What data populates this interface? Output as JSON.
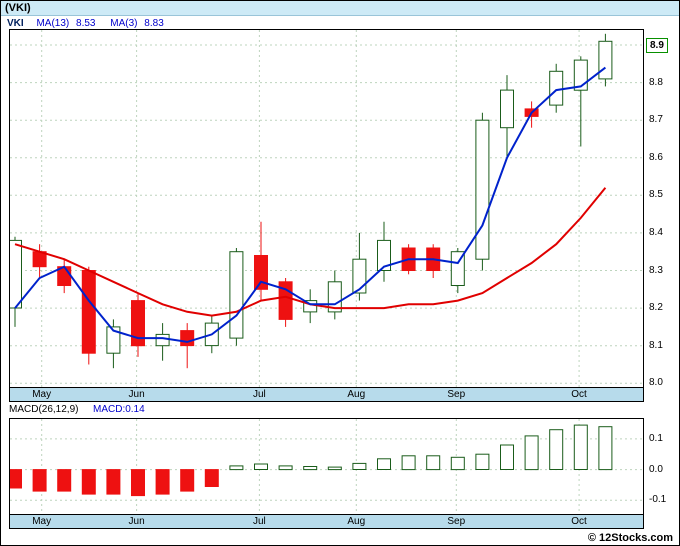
{
  "title": "(VKI)",
  "legend": {
    "symbol": "VKI",
    "ma13_label": "MA(13)",
    "ma13_value": "8.53",
    "ma3_label": "MA(3)",
    "ma3_value": "8.83"
  },
  "macd_panel": {
    "label": "MACD(26,12,9)",
    "current": "MACD:0.14"
  },
  "footer": {
    "credit": "© 12Stocks.com"
  },
  "colors": {
    "down": "#ee1111",
    "up_fill": "#ffffff",
    "up_stroke": "#1a5c1a",
    "grid": "#bdd4bd",
    "ma3": "#0022cc",
    "ma13": "#e00000",
    "tag_border": "#089000",
    "legend_blue": "#0000cc"
  },
  "chart_data": [
    {
      "type": "candlestick",
      "symbol": "VKI",
      "title": "(VKI)",
      "ylabel": "Price",
      "ylim": [
        7.99,
        8.94
      ],
      "yticks": [
        8.0,
        8.1,
        8.2,
        8.3,
        8.4,
        8.5,
        8.6,
        8.7,
        8.8,
        8.9
      ],
      "grid": true,
      "last_price": 8.9,
      "last_price_label": "8.9",
      "months": [
        {
          "label": "May",
          "f": 0.05
        },
        {
          "label": "Jun",
          "f": 0.2
        },
        {
          "label": "Jul",
          "f": 0.394
        },
        {
          "label": "Aug",
          "f": 0.547
        },
        {
          "label": "Sep",
          "f": 0.705
        },
        {
          "label": "Oct",
          "f": 0.899
        }
      ],
      "candles_format": [
        "open",
        "high",
        "low",
        "close"
      ],
      "candles": [
        [
          8.2,
          8.39,
          8.15,
          8.38
        ],
        [
          8.35,
          8.37,
          8.28,
          8.31
        ],
        [
          8.31,
          8.33,
          8.24,
          8.26
        ],
        [
          8.3,
          8.31,
          8.05,
          8.08
        ],
        [
          8.08,
          8.17,
          8.04,
          8.15
        ],
        [
          8.22,
          8.24,
          8.07,
          8.1
        ],
        [
          8.1,
          8.16,
          8.06,
          8.13
        ],
        [
          8.14,
          8.16,
          8.04,
          8.1
        ],
        [
          8.1,
          8.18,
          8.08,
          8.16
        ],
        [
          8.12,
          8.36,
          8.1,
          8.35
        ],
        [
          8.34,
          8.43,
          8.22,
          8.25
        ],
        [
          8.27,
          8.28,
          8.15,
          8.17
        ],
        [
          8.19,
          8.25,
          8.16,
          8.22
        ],
        [
          8.19,
          8.3,
          8.17,
          8.27
        ],
        [
          8.24,
          8.4,
          8.22,
          8.33
        ],
        [
          8.3,
          8.43,
          8.27,
          8.38
        ],
        [
          8.36,
          8.37,
          8.29,
          8.3
        ],
        [
          8.36,
          8.37,
          8.28,
          8.3
        ],
        [
          8.26,
          8.36,
          8.24,
          8.35
        ],
        [
          8.33,
          8.72,
          8.3,
          8.7
        ],
        [
          8.68,
          8.82,
          8.6,
          8.78
        ],
        [
          8.73,
          8.75,
          8.68,
          8.71
        ],
        [
          8.74,
          8.85,
          8.72,
          8.83
        ],
        [
          8.78,
          8.87,
          8.63,
          8.86
        ],
        [
          8.81,
          8.93,
          8.79,
          8.91
        ]
      ],
      "overlays": [
        {
          "name": "MA(13)",
          "color": "#e00000",
          "values": [
            8.37,
            8.35,
            8.33,
            8.3,
            8.27,
            8.24,
            8.21,
            8.19,
            8.18,
            8.19,
            8.22,
            8.23,
            8.21,
            8.2,
            8.2,
            8.2,
            8.21,
            8.21,
            8.22,
            8.24,
            8.28,
            8.32,
            8.37,
            8.44,
            8.52
          ]
        },
        {
          "name": "MA(3)",
          "color": "#0022cc",
          "values": [
            8.2,
            8.28,
            8.31,
            8.22,
            8.14,
            8.12,
            8.12,
            8.11,
            8.13,
            8.18,
            8.27,
            8.25,
            8.21,
            8.21,
            8.25,
            8.31,
            8.33,
            8.33,
            8.32,
            8.42,
            8.6,
            8.72,
            8.78,
            8.79,
            8.84
          ]
        }
      ]
    },
    {
      "type": "bar",
      "name": "MACD(26,12,9)",
      "current_value": 0.14,
      "ylim": [
        -0.145,
        0.165
      ],
      "yticks": [
        0.1,
        0.0,
        -0.1
      ],
      "grid": true,
      "values": [
        -0.06,
        -0.07,
        -0.07,
        -0.08,
        -0.08,
        -0.085,
        -0.08,
        -0.07,
        -0.055,
        0.012,
        0.018,
        0.012,
        0.01,
        0.008,
        0.02,
        0.035,
        0.045,
        0.045,
        0.04,
        0.05,
        0.08,
        0.11,
        0.13,
        0.145,
        0.14
      ]
    }
  ]
}
